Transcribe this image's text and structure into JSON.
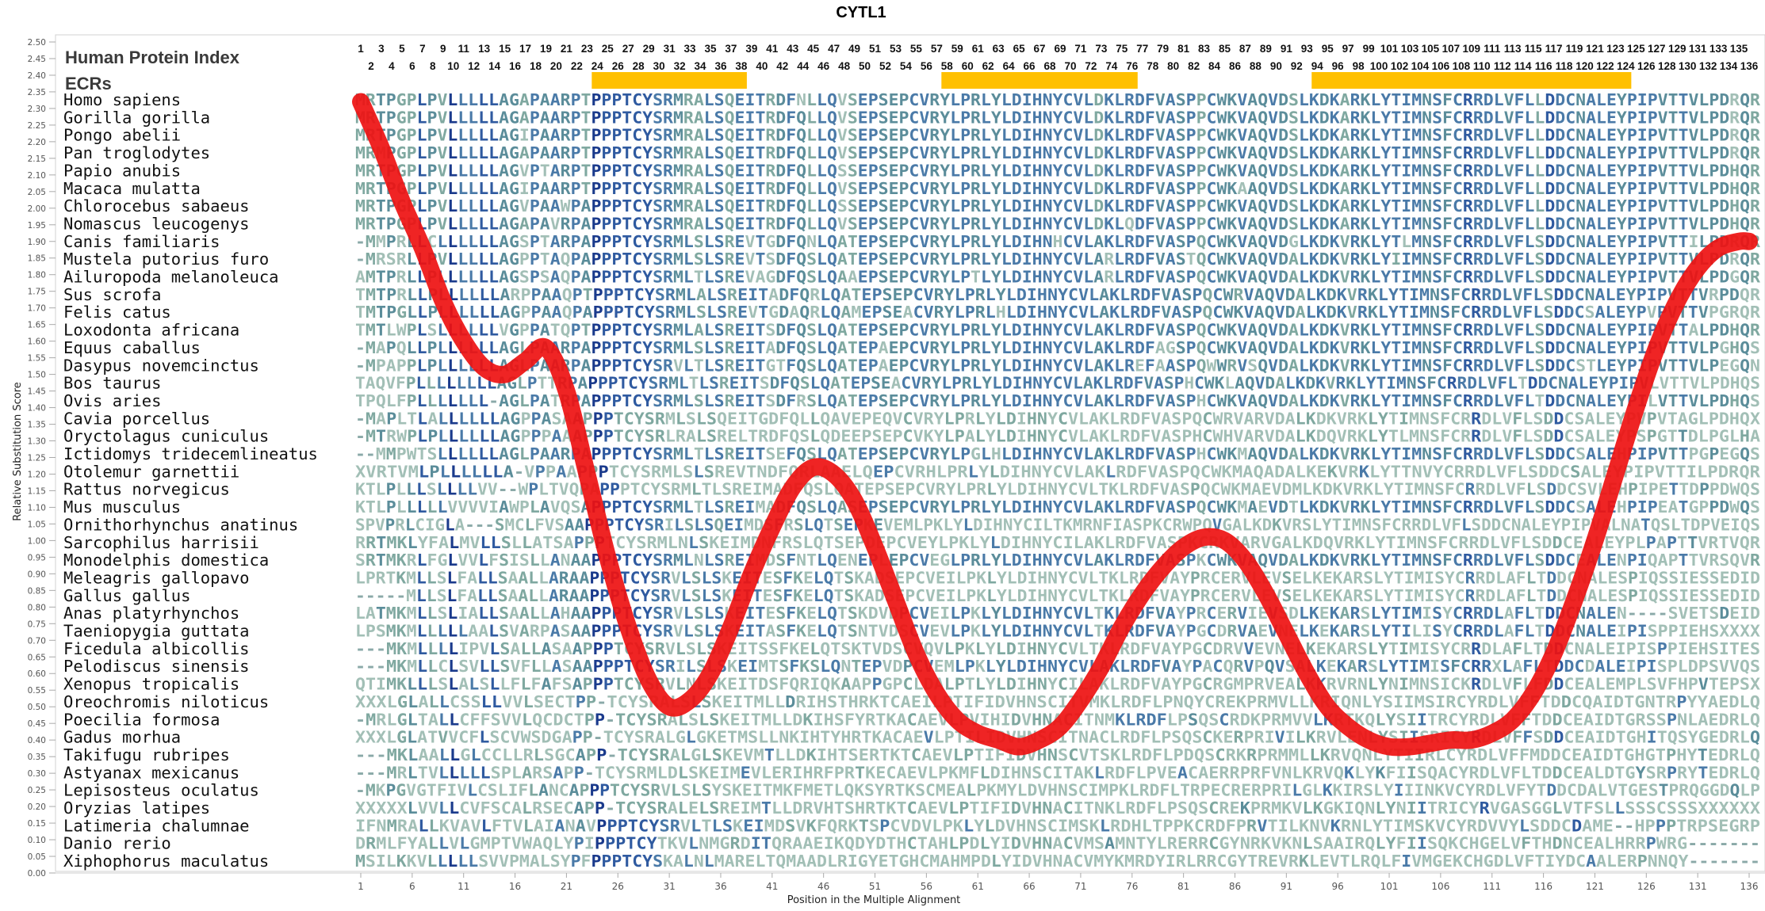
{
  "chart_data": {
    "type": "line",
    "title": "CYTL1",
    "xlabel": "Position in the Multiple Alignment",
    "ylabel": "Relative Substitution Score",
    "header_labels": {
      "index": "Human Protein Index",
      "ecrs": "ECRs"
    },
    "ylim": [
      0,
      2.5
    ],
    "xlim": [
      1,
      136
    ],
    "y_ticks": [
      "0.00",
      "0.05",
      "0.10",
      "0.15",
      "0.20",
      "0.25",
      "0.30",
      "0.35",
      "0.40",
      "0.45",
      "0.50",
      "0.55",
      "0.60",
      "0.65",
      "0.70",
      "0.75",
      "0.80",
      "0.85",
      "0.90",
      "0.95",
      "1.00",
      "1.05",
      "1.10",
      "1.15",
      "1.20",
      "1.25",
      "1.30",
      "1.35",
      "1.40",
      "1.45",
      "1.50",
      "1.55",
      "1.60",
      "1.65",
      "1.70",
      "1.75",
      "1.80",
      "1.85",
      "1.90",
      "1.95",
      "2.00",
      "2.05",
      "2.10",
      "2.15",
      "2.20",
      "2.25",
      "2.30",
      "2.35",
      "2.40",
      "2.45",
      "2.50"
    ],
    "x_ticks": [
      "1",
      "6",
      "11",
      "16",
      "21",
      "26",
      "31",
      "36",
      "41",
      "46",
      "51",
      "56",
      "61",
      "66",
      "71",
      "76",
      "81",
      "86",
      "91",
      "96",
      "101",
      "106",
      "111",
      "116",
      "121",
      "126",
      "131",
      "136"
    ],
    "protein_index_top": [
      "1",
      "3",
      "5",
      "7",
      "9",
      "11",
      "13",
      "15",
      "17",
      "19",
      "21",
      "23",
      "25",
      "27",
      "29",
      "31",
      "33",
      "35",
      "37",
      "39",
      "41",
      "43",
      "45",
      "47",
      "49",
      "51",
      "53",
      "55",
      "57",
      "59",
      "61",
      "63",
      "65",
      "67",
      "69",
      "71",
      "73",
      "75",
      "77",
      "79",
      "81",
      "83",
      "85",
      "87",
      "89",
      "91",
      "93",
      "95",
      "97",
      "99",
      "101",
      "103",
      "105",
      "107",
      "109",
      "111",
      "113",
      "115",
      "117",
      "119",
      "121",
      "123",
      "125",
      "127",
      "129",
      "131",
      "133",
      "135"
    ],
    "protein_index_bottom": [
      "2",
      "4",
      "6",
      "8",
      "10",
      "12",
      "14",
      "16",
      "18",
      "20",
      "22",
      "24",
      "26",
      "28",
      "30",
      "32",
      "34",
      "36",
      "38",
      "40",
      "42",
      "44",
      "46",
      "48",
      "50",
      "52",
      "54",
      "56",
      "58",
      "60",
      "62",
      "64",
      "66",
      "68",
      "70",
      "72",
      "74",
      "76",
      "78",
      "80",
      "82",
      "84",
      "86",
      "88",
      "90",
      "92",
      "94",
      "96",
      "98",
      "100",
      "102",
      "104",
      "106",
      "108",
      "110",
      "112",
      "114",
      "116",
      "118",
      "120",
      "122",
      "124",
      "126",
      "128",
      "130",
      "132",
      "134",
      "136"
    ],
    "ecr_regions": [
      [
        24,
        38
      ],
      [
        58,
        76
      ],
      [
        94,
        124
      ]
    ],
    "ecr_color": "#ffc000",
    "curve_color": "#ee1111",
    "species": [
      "Homo sapiens",
      "Gorilla gorilla",
      "Pongo abelii",
      "Pan troglodytes",
      "Papio anubis",
      "Macaca mulatta",
      "Chlorocebus sabaeus",
      "Nomascus leucogenys",
      "Canis familiaris",
      "Mustela putorius furo",
      "Ailuropoda melanoleuca",
      "Sus scrofa",
      "Felis catus",
      "Loxodonta africana",
      "Equus caballus",
      "Dasypus novemcinctus",
      "Bos taurus",
      "Ovis aries",
      "Cavia porcellus",
      "Oryctolagus cuniculus",
      "Ictidomys tridecemlineatus",
      "Otolemur garnettii",
      "Rattus norvegicus",
      "Mus musculus",
      "Ornithorhynchus anatinus",
      "Sarcophilus harrisii",
      "Monodelphis domestica",
      "Meleagris gallopavo",
      "Gallus gallus",
      "Anas platyrhynchos",
      "Taeniopygia guttata",
      "Ficedula albicollis",
      "Pelodiscus sinensis",
      "Xenopus tropicalis",
      "Oreochromis niloticus",
      "Poecilia formosa",
      "Gadus morhua",
      "Takifugu rubripes",
      "Astyanax mexicanus",
      "Lepisosteus oculatus",
      "Oryzias latipes",
      "Latimeria chalumnae",
      "Danio rerio",
      "Xiphophorus maculatus"
    ],
    "sequences": [
      "MRTPGPLPVLLLLLAGAPAARPTPPPTCYSRMRALSQEITRDFNLLQVSEPSEPCVRYLPRLYLDIHNYCVLDKLRDFVASPPCWKVAQVDSLKDKARKLYTIMNSFCRRDLVFLLDDCNALEYPIPVTTVLPDRQR",
      "MRTPGPLPVLLLLLAGAPAARPTPPPTCYSRMRALSQEITRDFQLLQVSEPSEPCVRYLPRLYLDIHNYCVLDKLRDFVASPPCWKVAQVDSLKDKARKLYTIMNSFCRRDLVFLLDDCNALEYPIPVTTVLPDRQR",
      "MRTPGPLPVLLLLLAGIPAARPTPPPTCYSRMRALSQEITRDFQLLQVSEPSEPCVRYLPRLYLDIHNYCVLDKLRDFVASPPCWKVAQVDSLKDKARKLYTIMNSFCRRDLVFLLDDCNALEYPIPVTTVLPDRQR",
      "MRMPGPLPVLLLLLAGAPAARPTPPPTCYSRMRALSQEITRDFQLLQVSEPSEPCVRYLPRLYLDIHNYCVLDKLRDFVASPPCWKVAQVDSLKDKARKLYTIMNSFCRRDLVFLLDDCNALEYPIPVTTVLPDRQR",
      "MRTPGPLPVLLLLLAGVPTARPTPPPTCYSRMRALSQEITRDFQLLQSSEPSEPCVRYLPRLYLDIHNYCVLDKLRDFVASPPCWKVAQVDSLKDKARKLYTIMNSFCRRDLVFLLDDCNALEYPIPVTTVLPDHQR",
      "MRTPGPLPVLLLLLAGIPAARPTPPPTCYSRMRALSQEITRDFQLLQVSEPSEPCVRYLPRLYLDIHNYCVLDKLRDFVASPPCWKAAQVDSLKDKARKLYTIMNSFCRRDLVFLLDDCNALEYPIPVTTVLPDHQR",
      "MRTPGPLPVLLLLLAGVPAAWPAPPPTCYSRMRALSQEITRDFQLLQSSEPSEPCVRYLPRLYLDIHNYCVLDKLRDFVASPPCWKVAQVDSLKDKARKLYTIMNSFCRRDLVFLLDDCNALEYPIPVTTVLPDHQR",
      "MRTPGPLPVLLLLLAGAPAVRPAPPPTCYSRMRALSQEITRDFQLLQVSEPSEPCVRYLPRLYLDIHNYCVLDKLQDFVASPPCWKVAQVDSLKDKARKLYTIMNSFCRRDLVFLLDDCNALEYPIPVTTVLPDHQR",
      "-MMPRLLCLLLLLLAGSPTARPAPPPTCYSRMLSLSREVTGDFQNLQATEPSEPCVRYLPRLYLDIHNHCVLAKLRDFVASPQCWKVAQVDGLKDKVRKLYTLMNSFCRRDLVFLSDDCNALEYPIPVTTILPDRQR",
      "-MRSRLLPVLLLLLAGPPTAQPAPPPTCYSRMLSLSREVTSDFQSLQATEPSEPCVRYLPRLYLDIHNYCVLARLRDFVASTQCWKVAQVDALKDKVRKLYIIMNSFCRRDLVFLSDDCNALEYPIPVTTVLPDRQR",
      "AMTPRLLPLLLLLLAGSPSAQPAPPPTCYSRMLTLSREVAGDFQSLQAAEPSEPCVRYLPTLYLDIHNYCVLARLRDFVASPQCWKVAQVDALKDKVRKLYTIMNSFCRRDLVFLSDDCNALEYPIPVTTVLPDGQR",
      "TMTPRLLPLLLLLLARPPAAQPTPPPTCYSRMLALSREITADFQRLQATEPSEPCVRYLPRLYLDIHNYCVLAKLRDFVASPQCWRVAQVDALKDKVRKLYTIMNSFCRRDLVFLSDDCNALEYPIPVTTVRPDQR",
      "TMTPGLLPLLLLLLAGPPAAQPAPPPTCYSRMLSLSREVTGDAQRLQAMEPSEACVRYLPRLHLDIHNYCVLAKLRDFVASPQCWKVAQVDALKDKVRKLYTIMNSFCRRDLVFLSDDCSALEYPVPVTTVPGRQR",
      "TMTLWPLSLLLLLLVGPPATQPTPPPTCYSRMLALSREITSDFQSLQATEPSEPCVRYLPRLYLDIHNYCVLAKLRDFVASPQCWKVAQVDALKDKVRKLYTIMNSFCRRDLVFLSDDCNALEYPIPVTTALPDHQR",
      "-MAPQLLPLLLLLLAGLPAARPAPPPTCYSRMLSLSREITADFQSLQATEPAEPCVRYLPRLYLDIHNYCVLAKLRDFAGSPQCWKVAQVDALKDKVRKLYTIMNSFCRRDLVFLSDDCNALEYPIPVTTVLPGHQS",
      "-MPAPPLPLLLLLLAGLPAARPAPPPTCYSRVLTLSREITGTFQSLQATEPAEPCVRYLPRLYLDIHNYCVLAKLREFAASPQWWRVSQVDALKDKVRKLYTIMNSFCRRDLVFLSDDCSTLEYPIPVTTVLPEGQN",
      "TAQVFPLLLLLLLLAGLPTTRPAPPPTCYSRMLTLSREITSDFQSLQATEPSEACVRYLPRLYLDIHNYCVLAKLRDFVASPHCWKLAQVDALKDKVRKLYTIMNSFCRRDLVFLTDDCNALEYPIPVLVTTVLPDHQS",
      "TPQLFPLLLLLLL-AGLPATRPAPPPTCYSRMLSLSREITSDFRSLQATEPSEPCVRYLPRLYLDIHNYCVLAKLRDFVASPHCWKVAQVDALKDKVRKLYTIMNSFCRRDLVFLTDDCNALEYPILVTTVLPDHQS",
      "-MAPLTLALLLLLLAGPPASAAPPPTCYSRMLSLSQEITGDFQLLQAVEPEQVCVRYLPRLYLDIHNYCVLAKLRDFVASPQCWRVARVDALKDKVRKLYTIMNSFCRRDLVFLSDDCSALEYPVPVTAGLPDHQX",
      "-MTRWPLPLLLLLLAGPPPAAAPPPTCYSRLRALSRELTRDFQSLQDEEPSEPCVKYLPALYLDIHNYCVLAKLRDFVASPHCWHVARVDALKDQVRKLYTLMNSFCRRDLVFLSDDCSALEYPSPGTTDLPGLHA",
      "--MMPWTSLLLLLLAGLPAARPAPPPTCYSRMLTLSREITSEFQSLQATEPSEPCVRYLPGLHLDIHNYCVLAKLRDFVASPHCWKMAQVDALKDKVRKLYTIMNSFCRRDLVFLSDDCSALEHPIPVTTPGPEGQS",
      "XVRTVMLPLLLLLLA-VPPAAPPPTCYSRMLSLSREVTNDFQRLAAELQEPCVRHLPRLYLDIHNYCVLAKLRDFVASPQCWKMAQADALKEKVRKLYTTNVYCRRDLVFLSDDCSALEYPIPVTTILPDRQR",
      "KTLPLLLSLLLLVV--WPLTVQPAPPPTCYSRMLTLSREIMADFQSLQATEPSEPCVRYLPRLYLDIHNYCVLTKLRDFVASPQCWKMAEVDMLKDKVRKLYTIMNSFCRRDLVFLSDDCSVLEHPIPETTDPPDWQS",
      "KTLPLLLLLVVVVIAWPLAVQSAPPPTCYSRMLTLSREIMADFQSLQASEPSEPCVRYLPRLYLDIHNYCVLAKLRDFVASPQCWKMAEVDTLKDKVRKLYTIMNSFCRRDLVFLSDDCSALEHPIPEATGPPDWQS",
      "SPVPRLCIGLA---SMCLFVSAAPPPTCYSRILSLSQEIMDSFRSLQTSEPKEVEMLPKLYLDIHNYCILTKMRNFIASPKCRWPQVGALKDKVRSLYTIMNSFCRRDLVFLSDDCNALEYPIPVALNATQSLTDPVEIQS",
      "RRTMKLYFALMVLLSLLATSAPPPTCYSRMLNLSKEIMDNFRSLQTSEPDEPCVEYLPKLYLDIHNYCILAKLRDFVASPKCRKVARVGALKDQVRKLYTIMNSFCRRDLVFLSDDCEALEYPLPAPTTVRTVQR",
      "SRTMKRLFGLVVLFSISLLANAAPPPTCYSRMLNLSREIMDSFNTLQENEPLEPCVEGLPRLYLDIHNYCVLAKLRDFVASPKCWKVAQVDALKDKVRKLYTIMNSFCRRDLVFLSDDCEALENPIQAPTTVRSQVR",
      "LPRTKMLLSLFALLSAALLARAAPPPTCYSRVLSLSKEITESFKELQTSKADSEPCVEILPKLYLDIHNYCVLTKLRDFVAYPRCERVLEVSELKEKARSLYTIMISYCRRDLAFLTDDCNALESPIQSSIESSEDID",
      "-----MLLSLFALLSAALLARAAPPPTCYSRVLSLSKEITESFKELQTSKADSEPCVEILPKLYLDIHNYCVLTKLRDFVAYPRCERVLEVSELKEKARSLYTIMISYCRRDLAFLTDDCNALESPIQSSIESSEDID",
      "LATMKMLLSLIALLSAALLAHAAPPPTCYSRVLSLSKEITESFKELQTSKDVDPCVEILPKLYLDIHNYCVLTKLRDFVAYPRCERVIEVSDLKEKARSLYTIMISYCRRDLAFLTDDCNALEN----SVETSDEID",
      "LPSMKMLLLLLAALSVARPASAAPPPTCYSRVLSLSKEITASFKELQTSNTVDSCVEVLPKLYLDIHNYCVLTKLRDFVAYPGCDRVAEVNELKEKARSLYTILISYCRRDLAFLTDDCNALEIPISPPIEHSXXXX",
      "---MKMLLLLIPVLSALLASAAPPPTCYSRVLSLSKEITSSFKELQTSKTVDSCVQVLPKLYLDIHNYCVLTKLRDFVAYPGCDRVVEVNELKEKARSLYTIMISYCRRDLAFLTDDCNALEIPISPPIEHSITES",
      "---MKMLLCLSVLLSVFLLASAAPPPTCYSRILSLSKEIMTSFKSLQNTEPVDPCVEMLPKLYLDIHNYCVLAKLRDFVAYPACQRVPQVSALKEKARSLYTIMISFCRRXLAFLTDDCDALEIPISPLDPSVVQS",
      "QTIMKLLLSLALSLLFLFAFSAPPPTCYSRVLNLSKEITDSFQRIQKAAPPGPCLDALPTLYLDIHNYCILAKLRDFVAYPGCRGMPRVEALKKRVRNLYNIMNSICKRDLVFLFDDCEALEMPLSVFHPVTEPSX",
      "XXXLGLALLCSSLLVVLSECTPP-TCYSRALSLSKEITMLLDRIHSTHRKTCAEILPTIFIDVHNSCITVMKLRDFLPNQYCREKPRMVLLKRIQNLYSIIMSIRCYRDLVFFTDDCQAIDTGNTRPYYAEDLQ",
      "-MRLGLTALLCFFSVVLQCDCTPP-TCYSRALSLSKEITMLLDKIHSFYRTKACAEVLPVIHIDVHNACITNMKLRDFLPSQSCRDKPRMVVLKRTKQLYSIITRCYRDLVFFTDDCEAIDTGRSSPNLAEDRLQ",
      "XXXLGLATVVCFLSCVWSDGAPP-TCYSRALGLGKETMSLLNKIHTYHRTKACAEVLPTILIDVHNSCITNACLRDFLPSQSCKERPRIVILKRVLENLYSIISRICYRDLVFFSDDCEAIDTGHITQSYGEDRLQ",
      "---MKLAALLGLCCLLRLSGCAPP-TCYSRALGLSKEVMTLLDKIHTSERTKTCAEVLPTIFIDVHNSCVTSKLRDFLPDQSCRKRPRMMLLKRVQNLYTIIRLCYRDLVFFMDDCEAIDTGHGTPHYTEDRLQ",
      "---MRLTVLLLLLSPLARSAPP-TCYSRMLDLSKEIMEVLERIHRFPRTKECAEVLPKMFLDIHNSCITAKLRDFLPVEACAERRPRFVNLKRVQKLYKFIISQACYRDLVFLTDDCEALDTGYSRPRYTEDRLQ",
      "-MKPGVGTFIVLCSLIFLANCAPPPTCYSRVLSLSYSKEITMKFMETLQKSYRTKSCMEALPKMYLDVHNSCIMPKLRDFLTRPECRERPRILGLKKIRSLYIIINKVCYRDLVFYTDDCDALVTGESTPRQGGDQLP",
      "XXXXXLVVLLCVFSCALRSECAPP-TCYSRALELSREIMTLLDRVHTSHRTKTCAEVLPTIFIDVHNACITNKLRDFLPSQSCREKPRMKVLKGKIQNLYNIITRICYRVGASGGLVTFSLLSSSCSSSXXXXXX",
      "IFNMRALLKVAVLFTVLAIANAVPPPTCYSRVLTLSKEIMDSVKFQRKTSPCVDVLPKLYLDVHNSCIMSKLRDHLTPPKCRDFPRVTILKNVKRNLYTIMSKVCYRDVVYLSDDCDAME--HPPPTRPSEGRP",
      "DRMLFYALLVLGMPTVWAQLYPIPPPTCYTKVLNMGRDITQRAAEIKQDYDTHCTAHLPDLYIDVHNACVMSAMNTYLRERRCGYNRKVKNLSAAIRQLYFIISQKCHGELVFTHDNCEALHRRPWRG-------",
      "MSILKKVLLLLLSVVPMALSYPFPPPTCYSKALNLMARELTQMAADLRIGYETGHCMAHMPDLYIDVHNACVMYKMRDYIRLRRCGYTREVRKLEVTLRQLFIVMGEKCHGDLVFTIYDCAALERPNNQY-------"
    ],
    "substitution_curve": {
      "x": [
        1,
        3,
        5,
        7,
        9,
        11,
        13,
        15,
        17,
        19,
        21,
        23,
        25,
        27,
        29,
        31,
        33,
        35,
        37,
        39,
        41,
        43,
        45,
        47,
        49,
        51,
        53,
        55,
        57,
        59,
        61,
        63,
        65,
        67,
        69,
        71,
        73,
        75,
        77,
        79,
        81,
        83,
        85,
        87,
        89,
        91,
        93,
        95,
        97,
        99,
        101,
        103,
        105,
        107,
        109,
        111,
        113,
        115,
        117,
        119,
        121,
        123,
        125,
        127,
        129,
        131,
        133,
        135,
        136
      ],
      "y": [
        2.32,
        2.18,
        2.02,
        1.88,
        1.72,
        1.6,
        1.52,
        1.5,
        1.54,
        1.58,
        1.45,
        1.2,
        0.95,
        0.74,
        0.58,
        0.5,
        0.52,
        0.6,
        0.74,
        0.9,
        1.04,
        1.16,
        1.22,
        1.2,
        1.12,
        0.98,
        0.82,
        0.66,
        0.54,
        0.46,
        0.42,
        0.4,
        0.38,
        0.4,
        0.44,
        0.52,
        0.62,
        0.74,
        0.84,
        0.92,
        0.98,
        1.01,
        1.0,
        0.94,
        0.84,
        0.72,
        0.6,
        0.5,
        0.44,
        0.4,
        0.38,
        0.38,
        0.39,
        0.4,
        0.4,
        0.42,
        0.46,
        0.54,
        0.66,
        0.82,
        1.0,
        1.2,
        1.4,
        1.58,
        1.72,
        1.82,
        1.88,
        1.9,
        1.9
      ]
    }
  }
}
